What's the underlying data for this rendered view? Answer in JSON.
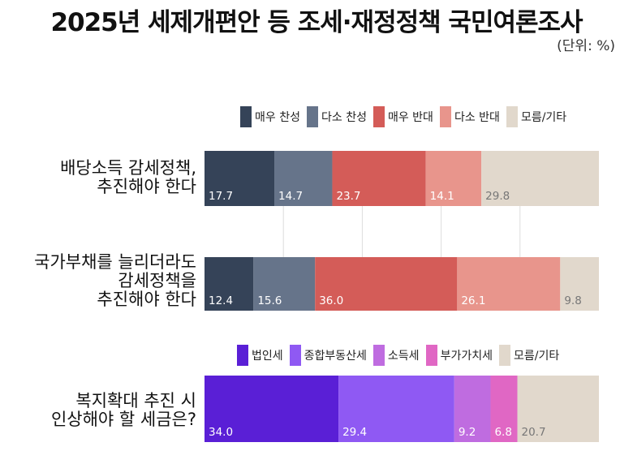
{
  "title": "2025년 세제개편안 등 조세·재정정책 국민여론조사",
  "unit": "(단위: %)",
  "colors": {
    "strong_for": "#354358",
    "for": "#66748a",
    "strong_against": "#d45c58",
    "against": "#e8958c",
    "other": "#e1d8cc",
    "corporate": "#5a1fd6",
    "property": "#8f59f3",
    "income": "#bf6ce0",
    "vat": "#e067c4",
    "other2": "#e1d8cc",
    "grid": "#dddddd"
  },
  "chart_data": [
    {
      "type": "bar",
      "orientation": "horizontal",
      "stacked": true,
      "unit": "%",
      "legend_position": "top-right",
      "grid": true,
      "categories": [
        "배당소득 감세정책,\n추진해야 한다",
        "국가부채를 늘리더라도\n감세정책을\n추진해야 한다"
      ],
      "series": [
        {
          "name": "매우 찬성",
          "color_key": "strong_for",
          "values": [
            17.7,
            12.4
          ]
        },
        {
          "name": "다소 찬성",
          "color_key": "for",
          "values": [
            14.7,
            15.6
          ]
        },
        {
          "name": "매우 반대",
          "color_key": "strong_against",
          "values": [
            23.7,
            36.0
          ]
        },
        {
          "name": "다소 반대",
          "color_key": "against",
          "values": [
            14.1,
            26.1
          ]
        },
        {
          "name": "모름/기타",
          "color_key": "other",
          "values": [
            29.8,
            9.8
          ]
        }
      ]
    },
    {
      "type": "bar",
      "orientation": "horizontal",
      "stacked": true,
      "unit": "%",
      "legend_position": "top-right",
      "grid": false,
      "categories": [
        "복지확대 추진 시\n인상해야 할 세금은?"
      ],
      "series": [
        {
          "name": "법인세",
          "color_key": "corporate",
          "values": [
            34.0
          ]
        },
        {
          "name": "종합부동산세",
          "color_key": "property",
          "values": [
            29.4
          ]
        },
        {
          "name": "소득세",
          "color_key": "income",
          "values": [
            9.2
          ]
        },
        {
          "name": "부가가치세",
          "color_key": "vat",
          "values": [
            6.8
          ]
        },
        {
          "name": "모름/기타",
          "color_key": "other2",
          "values": [
            20.7
          ]
        }
      ]
    }
  ]
}
